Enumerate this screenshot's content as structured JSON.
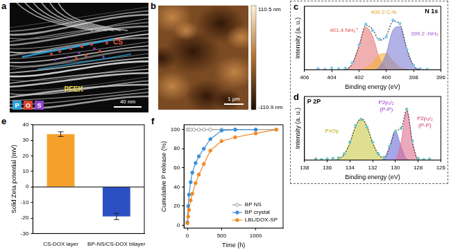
{
  "panel_a": {
    "panel_label": "a",
    "labels": [
      {
        "text": "PEEK",
        "color": "#e8d44d"
      },
      {
        "text": "CS",
        "color": "#e2553f"
      }
    ],
    "scale_bar": "40 nm",
    "elements": [
      {
        "text": "P",
        "color": "#2f9fd8"
      },
      {
        "text": "O",
        "color": "#d8432f"
      },
      {
        "text": "S",
        "color": "#8e44c9"
      }
    ]
  },
  "panel_b": {
    "panel_label": "b",
    "scale_bar": "1 μm",
    "colorbar": {
      "max_label": "110.5 nm",
      "min_label": "-110.9 nm"
    }
  },
  "chart_data": [
    {
      "panel_label": "c",
      "type": "line",
      "title": "N 1s",
      "x_label": "Binding energy (eV)",
      "y_label": "Intensity (a. u.)",
      "x": [
        405,
        404.5,
        404,
        403.5,
        403,
        402.5,
        402,
        401.5,
        401,
        400.5,
        400,
        399.5,
        399,
        398.5,
        398,
        397.5,
        397
      ],
      "xlim": [
        406,
        396
      ],
      "xticks": [
        406,
        404,
        402,
        400,
        398,
        396
      ],
      "ylim": [
        0,
        1.1
      ],
      "tick_labels": "x",
      "grid": false,
      "series": [
        {
          "type": "area",
          "color": "#e87c7c",
          "values": [
            0,
            0,
            0,
            0,
            0.01,
            0.1,
            0.41,
            0.74,
            0.58,
            0.2,
            0.03,
            0,
            0,
            0,
            0,
            0,
            0
          ]
        },
        {
          "type": "area",
          "color": "#f2b134",
          "values": [
            0,
            0,
            0,
            0,
            0,
            0,
            0,
            0.03,
            0.12,
            0.26,
            0.28,
            0.15,
            0.04,
            0.01,
            0,
            0,
            0
          ]
        },
        {
          "type": "area",
          "color": "#7f7fd6",
          "values": [
            0,
            0,
            0,
            0,
            0,
            0,
            0,
            0,
            0,
            0.05,
            0.28,
            0.69,
            0.75,
            0.36,
            0.07,
            0.01,
            0
          ]
        },
        {
          "type": "line",
          "color": "#333333",
          "line_style": "dotted",
          "values": [
            0,
            0,
            0,
            0,
            0.01,
            0.1,
            0.41,
            0.77,
            0.7,
            0.51,
            0.59,
            0.84,
            0.79,
            0.37,
            0.07,
            0.01,
            0
          ]
        },
        {
          "type": "scatter",
          "color": "#7cc8ec",
          "marker": "circle",
          "values": [
            0.02,
            0.01,
            0.03,
            0.02,
            0.03,
            0.12,
            0.43,
            0.79,
            0.68,
            0.53,
            0.57,
            0.86,
            0.8,
            0.35,
            0.08,
            0.02,
            0.01
          ]
        }
      ],
      "annotations": [
        {
          "text": "401.4 NH₃⁺",
          "x": 403.1,
          "y": 0.68,
          "color": "#e05050"
        },
        {
          "text": "400.2 C-N",
          "x": 400.2,
          "y": 1.0,
          "color": "#e0a020"
        },
        {
          "text": "399.2 -NH₂",
          "x": 397.2,
          "y": 0.62,
          "color": "#9b59d0"
        }
      ]
    },
    {
      "panel_label": "d",
      "type": "line",
      "title": "P 2P",
      "x_label": "Binding energy (eV)",
      "y_label": "Intensity (a. u.)",
      "x": [
        137,
        136.5,
        136,
        135.5,
        135,
        134.5,
        134,
        133.5,
        133,
        132.5,
        132,
        131.5,
        131,
        130.5,
        130,
        129.5,
        129,
        128.5,
        128,
        127.5,
        127
      ],
      "xlim": [
        138,
        126
      ],
      "xticks": [
        138,
        136,
        134,
        132,
        130,
        128,
        126
      ],
      "ylim": [
        0,
        1.1
      ],
      "tick_labels": "x",
      "grid": false,
      "series": [
        {
          "type": "area",
          "color": "#c9c94a",
          "values": [
            0,
            0,
            0,
            0,
            0.02,
            0.1,
            0.3,
            0.58,
            0.72,
            0.58,
            0.3,
            0.1,
            0.02,
            0,
            0,
            0,
            0,
            0,
            0,
            0,
            0
          ]
        },
        {
          "type": "area",
          "color": "#6a6ad8",
          "values": [
            0,
            0,
            0,
            0,
            0,
            0,
            0,
            0,
            0,
            0,
            0,
            0,
            0.02,
            0.23,
            0.5,
            0.23,
            0.02,
            0,
            0,
            0,
            0
          ]
        },
        {
          "type": "area",
          "color": "#e07090",
          "values": [
            0,
            0,
            0,
            0,
            0,
            0,
            0,
            0,
            0,
            0,
            0,
            0,
            0,
            0,
            0.01,
            0.31,
            0.85,
            0.31,
            0.01,
            0,
            0
          ]
        },
        {
          "type": "line",
          "color": "#333333",
          "line_style": "dotted",
          "values": [
            0,
            0,
            0,
            0,
            0.02,
            0.1,
            0.3,
            0.58,
            0.72,
            0.58,
            0.3,
            0.1,
            0.04,
            0.23,
            0.51,
            0.54,
            0.87,
            0.31,
            0.01,
            0,
            0
          ]
        },
        {
          "type": "scatter",
          "color": "#6fc6c0",
          "marker": "circle",
          "values": [
            0.02,
            0.01,
            0.02,
            0.03,
            0.04,
            0.11,
            0.31,
            0.6,
            0.7,
            0.57,
            0.31,
            0.11,
            0.05,
            0.24,
            0.49,
            0.55,
            0.88,
            0.33,
            0.03,
            0.01,
            0.02
          ]
        }
      ],
      "annotations": [
        {
          "text": "PxOy",
          "x": 135.6,
          "y": 0.5,
          "color": "#b8a800"
        },
        {
          "text": "P2p₁/₂\n(P-P)",
          "x": 130.8,
          "y": 1.0,
          "color": "#9b30c8"
        },
        {
          "text": "P2p₃/₂\n(P-P)",
          "x": 127.4,
          "y": 0.72,
          "color": "#d03070"
        }
      ]
    },
    {
      "panel_label": "e",
      "type": "bar",
      "y_label": "Solid Zeta potential (mV)",
      "categories": [
        "CS-DOX layer",
        "BP-NS/CS-DOX bilayer"
      ],
      "values": [
        34,
        -19
      ],
      "errors": [
        1.5,
        2
      ],
      "colors": [
        "#f5a02a",
        "#2c4fc4"
      ],
      "ylim": [
        -30,
        40
      ],
      "yticks": [
        -30,
        -20,
        -10,
        0,
        10,
        20,
        30,
        40
      ],
      "grid": false
    },
    {
      "panel_label": "f",
      "type": "line",
      "x_label": "Time (h)",
      "y_label": "Cumulative P release (%)",
      "xlim": [
        -50,
        1400
      ],
      "xticks": [
        0,
        500,
        1000
      ],
      "ylim": [
        -3,
        105
      ],
      "yticks": [
        0,
        20,
        40,
        60,
        80,
        100
      ],
      "grid": false,
      "legend": "lower right",
      "series": [
        {
          "name": "BP NS",
          "color": "#9a9a9a",
          "marker": "open_circle",
          "x": [
            0,
            24,
            48,
            96,
            168,
            240,
            336,
            500,
            700,
            1000,
            1300
          ],
          "values": [
            100,
            100,
            100,
            100,
            100,
            100,
            100,
            100,
            100,
            100,
            100
          ]
        },
        {
          "name": "BP crystal",
          "color": "#3a8fd9",
          "marker": "circle",
          "x": [
            0,
            12,
            24,
            48,
            72,
            120,
            168,
            240,
            336,
            500,
            700,
            1000
          ],
          "values": [
            3,
            20,
            32,
            45,
            55,
            65,
            72,
            80,
            90,
            99,
            100,
            100
          ]
        },
        {
          "name": "LBL/DOX-SP",
          "color": "#f08a24",
          "marker": "circle",
          "x": [
            0,
            12,
            24,
            48,
            72,
            120,
            168,
            240,
            336,
            500,
            700,
            1000,
            1300
          ],
          "values": [
            2,
            9,
            16,
            26,
            33,
            44,
            53,
            64,
            78,
            88,
            92,
            96,
            100
          ]
        }
      ]
    }
  ]
}
